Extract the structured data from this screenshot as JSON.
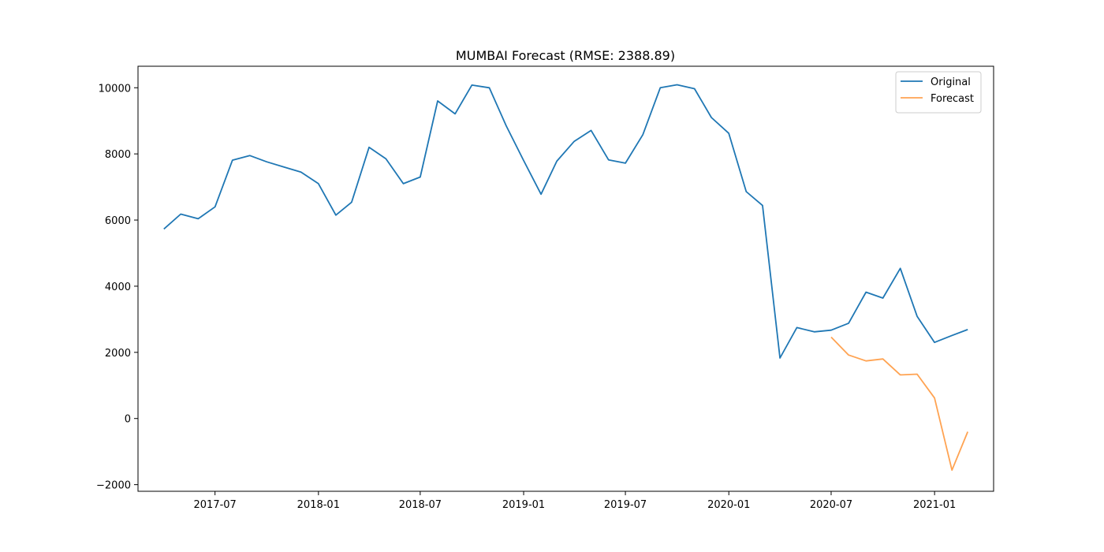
{
  "chart_data": {
    "type": "line",
    "title": "MUMBAI Forecast (RMSE: 2388.89)",
    "xlabel": "",
    "ylabel": "",
    "ylim": [
      -2200,
      10650
    ],
    "xlim": [
      "2017-02-14",
      "2021-04-16"
    ],
    "x_ticks": [
      "2017-07",
      "2018-01",
      "2018-07",
      "2019-01",
      "2019-07",
      "2020-01",
      "2020-07",
      "2021-01"
    ],
    "y_ticks": [
      "−2000",
      "0",
      "2000",
      "4000",
      "6000",
      "8000",
      "10000"
    ],
    "legend": {
      "placement": "top-right",
      "entries": [
        "Original",
        "Forecast"
      ]
    },
    "grid": false,
    "series": [
      {
        "name": "Original",
        "color": "#1f77b4",
        "points": [
          [
            "2017-04",
            5730
          ],
          [
            "2017-05",
            6180
          ],
          [
            "2017-06",
            6040
          ],
          [
            "2017-07",
            6400
          ],
          [
            "2017-08",
            7810
          ],
          [
            "2017-09",
            7950
          ],
          [
            "2017-10",
            7760
          ],
          [
            "2017-11",
            7600
          ],
          [
            "2017-12",
            7450
          ],
          [
            "2018-01",
            7100
          ],
          [
            "2018-02",
            6150
          ],
          [
            "2018-03",
            6540
          ],
          [
            "2018-04",
            8200
          ],
          [
            "2018-05",
            7850
          ],
          [
            "2018-06",
            7100
          ],
          [
            "2018-07",
            7300
          ],
          [
            "2018-08",
            9600
          ],
          [
            "2018-09",
            9210
          ],
          [
            "2018-10",
            10080
          ],
          [
            "2018-11",
            10000
          ],
          [
            "2018-12",
            8850
          ],
          [
            "2019-01",
            7800
          ],
          [
            "2019-02",
            6780
          ],
          [
            "2019-03",
            7780
          ],
          [
            "2019-04",
            8380
          ],
          [
            "2019-05",
            8710
          ],
          [
            "2019-06",
            7820
          ],
          [
            "2019-07",
            7720
          ],
          [
            "2019-08",
            8580
          ],
          [
            "2019-09",
            10000
          ],
          [
            "2019-10",
            10090
          ],
          [
            "2019-11",
            9970
          ],
          [
            "2019-12",
            9100
          ],
          [
            "2020-01",
            8620
          ],
          [
            "2020-02",
            6860
          ],
          [
            "2020-03",
            6440
          ],
          [
            "2020-04",
            1830
          ],
          [
            "2020-05",
            2750
          ],
          [
            "2020-06",
            2620
          ],
          [
            "2020-07",
            2670
          ],
          [
            "2020-08",
            2880
          ],
          [
            "2020-09",
            3820
          ],
          [
            "2020-10",
            3640
          ],
          [
            "2020-11",
            4540
          ],
          [
            "2020-12",
            3090
          ],
          [
            "2021-01",
            2300
          ],
          [
            "2021-02",
            2510
          ],
          [
            "2021-03",
            2690
          ]
        ]
      },
      {
        "name": "Forecast",
        "color": "#ffa352",
        "points": [
          [
            "2020-07",
            2460
          ],
          [
            "2020-08",
            1920
          ],
          [
            "2020-09",
            1740
          ],
          [
            "2020-10",
            1800
          ],
          [
            "2020-11",
            1320
          ],
          [
            "2020-12",
            1340
          ],
          [
            "2021-01",
            620
          ],
          [
            "2021-02",
            -1560
          ],
          [
            "2021-03",
            -400
          ]
        ]
      }
    ]
  }
}
